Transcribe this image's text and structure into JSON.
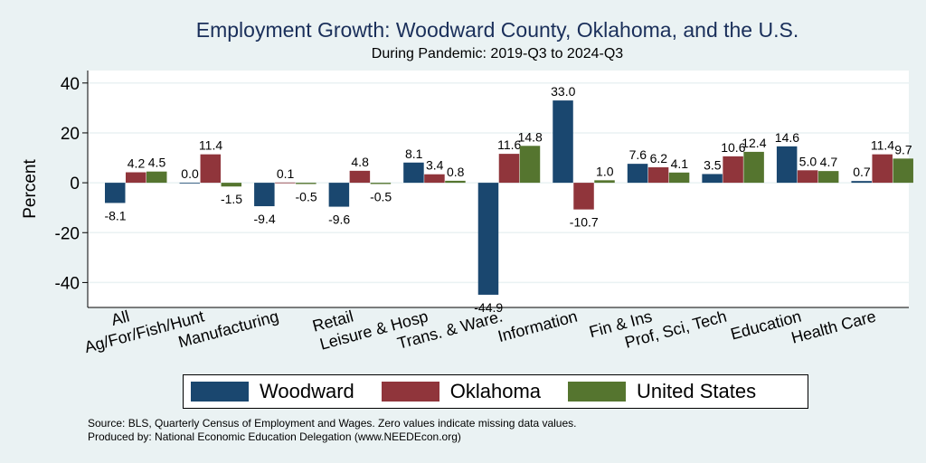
{
  "chart_data": {
    "type": "bar",
    "title": "Employment Growth: Woodward County, Oklahoma, and the U.S.",
    "subtitle": "During Pandemic: 2019-Q3 to 2024-Q3",
    "xlabel": "",
    "ylabel": "Percent",
    "ylim": [
      -50,
      45
    ],
    "yticks": [
      40,
      20,
      0,
      -20,
      -40
    ],
    "yticklabels": [
      "40",
      "20",
      "0",
      "-20",
      "-40"
    ],
    "grid": true,
    "legend_position": "bottom",
    "categories": [
      "All",
      "Ag/For/Fish/Hunt",
      "Manufacturing",
      "Retail",
      "Leisure & Hosp",
      "Trans. & Ware.",
      "Information",
      "Fin & Ins",
      "Prof, Sci, Tech",
      "Education",
      "Health Care"
    ],
    "series": [
      {
        "name": "Woodward",
        "color": "#1a476f",
        "values": [
          -8.1,
          0.0,
          -9.4,
          -9.6,
          8.1,
          -44.9,
          33.0,
          7.6,
          3.5,
          14.6,
          0.7
        ],
        "labels": [
          "-8.1",
          "0.0",
          "-9.4",
          "-9.6",
          "8.1",
          "-44.9",
          "33.0",
          "7.6",
          "3.5",
          "14.6",
          "0.7"
        ]
      },
      {
        "name": "Oklahoma",
        "color": "#90353b",
        "values": [
          4.2,
          11.4,
          0.1,
          4.8,
          3.4,
          11.6,
          -10.7,
          6.2,
          10.6,
          5.0,
          11.4
        ],
        "labels": [
          "4.2",
          "11.4",
          "0.1",
          "4.8",
          "3.4",
          "11.6",
          "-10.7",
          "6.2",
          "10.6",
          "5.0",
          "11.4"
        ]
      },
      {
        "name": "United States",
        "color": "#55752f",
        "values": [
          4.5,
          -1.5,
          -0.5,
          -0.5,
          0.8,
          14.8,
          1.0,
          4.1,
          12.4,
          4.7,
          9.7
        ],
        "labels": [
          "4.5",
          "-1.5",
          "-0.5",
          "-0.5",
          "0.8",
          "14.8",
          "1.0",
          "4.1",
          "12.4",
          "4.7",
          "9.7"
        ]
      }
    ],
    "notes": [
      "Source: BLS, Quarterly Census of Employment and Wages. Zero values indicate missing data values.",
      "Produced by: National Economic Education Delegation (www.NEEDEcon.org)"
    ]
  }
}
